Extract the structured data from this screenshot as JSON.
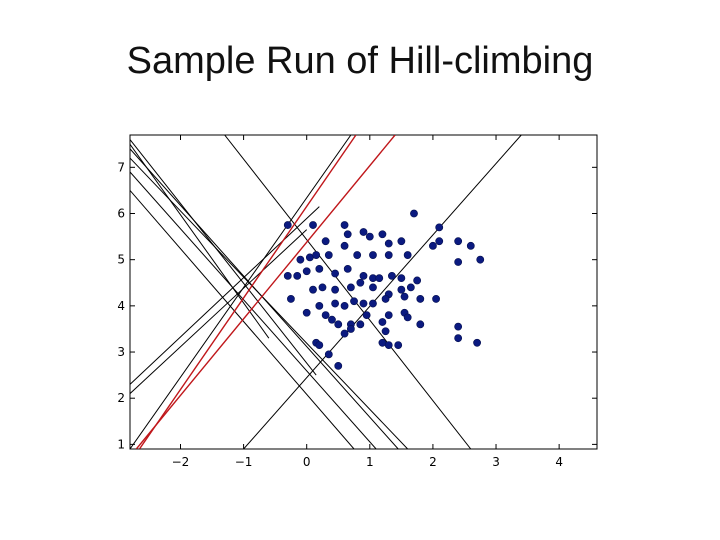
{
  "slide": {
    "title": "Sample Run of Hill-climbing"
  },
  "chart_data": {
    "type": "scatter",
    "title": "",
    "xlabel": "",
    "ylabel": "",
    "xlim": [
      -2.8,
      4.6
    ],
    "ylim": [
      0.9,
      7.7
    ],
    "x_ticks": [
      -2,
      -1,
      0,
      1,
      2,
      3,
      4
    ],
    "y_ticks": [
      1,
      2,
      3,
      4,
      5,
      6,
      7
    ],
    "x_tick_labels": [
      "−2",
      "−1",
      "0",
      "1",
      "2",
      "3",
      "4"
    ],
    "y_tick_labels": [
      "1",
      "2",
      "3",
      "4",
      "5",
      "6",
      "7"
    ],
    "grid": false,
    "legend": "none",
    "colors": {
      "points": "#0b1a80",
      "lines": "#000000",
      "highlight_lines": "#c0171b"
    },
    "points": [
      [
        -0.3,
        5.75
      ],
      [
        0.1,
        5.75
      ],
      [
        0.6,
        5.75
      ],
      [
        0.9,
        5.6
      ],
      [
        1.2,
        5.55
      ],
      [
        1.7,
        6.0
      ],
      [
        2.1,
        5.7
      ],
      [
        0.3,
        5.4
      ],
      [
        0.65,
        5.55
      ],
      [
        1.0,
        5.5
      ],
      [
        1.3,
        5.35
      ],
      [
        1.5,
        5.4
      ],
      [
        2.0,
        5.3
      ],
      [
        2.1,
        5.4
      ],
      [
        2.4,
        5.4
      ],
      [
        2.6,
        5.3
      ],
      [
        -0.1,
        5.0
      ],
      [
        0.05,
        5.05
      ],
      [
        0.15,
        5.1
      ],
      [
        0.35,
        5.1
      ],
      [
        0.6,
        5.3
      ],
      [
        0.8,
        5.1
      ],
      [
        1.05,
        5.1
      ],
      [
        1.3,
        5.1
      ],
      [
        1.6,
        5.1
      ],
      [
        2.4,
        4.95
      ],
      [
        2.75,
        5.0
      ],
      [
        -0.3,
        4.65
      ],
      [
        -0.15,
        4.65
      ],
      [
        0.0,
        4.75
      ],
      [
        0.2,
        4.8
      ],
      [
        0.45,
        4.7
      ],
      [
        0.65,
        4.8
      ],
      [
        0.9,
        4.65
      ],
      [
        1.05,
        4.6
      ],
      [
        1.15,
        4.6
      ],
      [
        1.35,
        4.65
      ],
      [
        1.5,
        4.6
      ],
      [
        1.75,
        4.55
      ],
      [
        -0.25,
        4.15
      ],
      [
        0.1,
        4.35
      ],
      [
        0.25,
        4.4
      ],
      [
        0.45,
        4.35
      ],
      [
        0.7,
        4.4
      ],
      [
        0.85,
        4.5
      ],
      [
        1.05,
        4.4
      ],
      [
        1.3,
        4.25
      ],
      [
        1.5,
        4.35
      ],
      [
        1.65,
        4.4
      ],
      [
        1.8,
        4.15
      ],
      [
        2.05,
        4.15
      ],
      [
        0.2,
        4.0
      ],
      [
        0.45,
        4.05
      ],
      [
        0.6,
        4.0
      ],
      [
        0.75,
        4.1
      ],
      [
        0.9,
        4.05
      ],
      [
        1.05,
        4.05
      ],
      [
        1.25,
        4.15
      ],
      [
        1.55,
        4.2
      ],
      [
        0.0,
        3.85
      ],
      [
        0.3,
        3.8
      ],
      [
        0.7,
        3.6
      ],
      [
        0.95,
        3.8
      ],
      [
        1.3,
        3.8
      ],
      [
        1.55,
        3.85
      ],
      [
        1.6,
        3.75
      ],
      [
        0.4,
        3.7
      ],
      [
        0.5,
        3.6
      ],
      [
        0.85,
        3.6
      ],
      [
        1.2,
        3.65
      ],
      [
        1.8,
        3.6
      ],
      [
        2.4,
        3.55
      ],
      [
        0.6,
        3.4
      ],
      [
        0.7,
        3.5
      ],
      [
        1.25,
        3.45
      ],
      [
        2.4,
        3.3
      ],
      [
        2.7,
        3.2
      ],
      [
        0.15,
        3.2
      ],
      [
        0.2,
        3.15
      ],
      [
        1.2,
        3.2
      ],
      [
        1.3,
        3.15
      ],
      [
        1.45,
        3.15
      ],
      [
        0.35,
        2.95
      ],
      [
        0.5,
        2.7
      ]
    ],
    "lines": [
      {
        "p1": [
          -2.8,
          7.5
        ],
        "p2": [
          -0.6,
          3.3
        ],
        "highlight": false
      },
      {
        "p1": [
          -2.8,
          7.6
        ],
        "p2": [
          0.15,
          2.5
        ],
        "highlight": false
      },
      {
        "p1": [
          -2.8,
          7.4
        ],
        "p2": [
          1.45,
          0.9
        ],
        "highlight": false
      },
      {
        "p1": [
          -2.8,
          7.2
        ],
        "p2": [
          1.6,
          0.9
        ],
        "highlight": false
      },
      {
        "p1": [
          -2.8,
          6.9
        ],
        "p2": [
          1.1,
          0.9
        ],
        "highlight": false
      },
      {
        "p1": [
          -2.8,
          6.5
        ],
        "p2": [
          0.75,
          0.9
        ],
        "highlight": false
      },
      {
        "p1": [
          -1.3,
          7.7
        ],
        "p2": [
          2.6,
          0.9
        ],
        "highlight": false
      },
      {
        "p1": [
          -2.8,
          2.1
        ],
        "p2": [
          0.0,
          5.65
        ],
        "highlight": false
      },
      {
        "p1": [
          -2.8,
          2.3
        ],
        "p2": [
          0.2,
          6.15
        ],
        "highlight": false
      },
      {
        "p1": [
          -1.0,
          0.9
        ],
        "p2": [
          3.4,
          7.7
        ],
        "highlight": false
      },
      {
        "p1": [
          -2.8,
          0.9
        ],
        "p2": [
          0.7,
          7.7
        ],
        "highlight": false
      },
      {
        "p1": [
          -2.7,
          0.9
        ],
        "p2": [
          1.4,
          7.7
        ],
        "highlight": true
      },
      {
        "p1": [
          -2.65,
          0.9
        ],
        "p2": [
          0.78,
          7.7
        ],
        "highlight": true
      }
    ]
  }
}
